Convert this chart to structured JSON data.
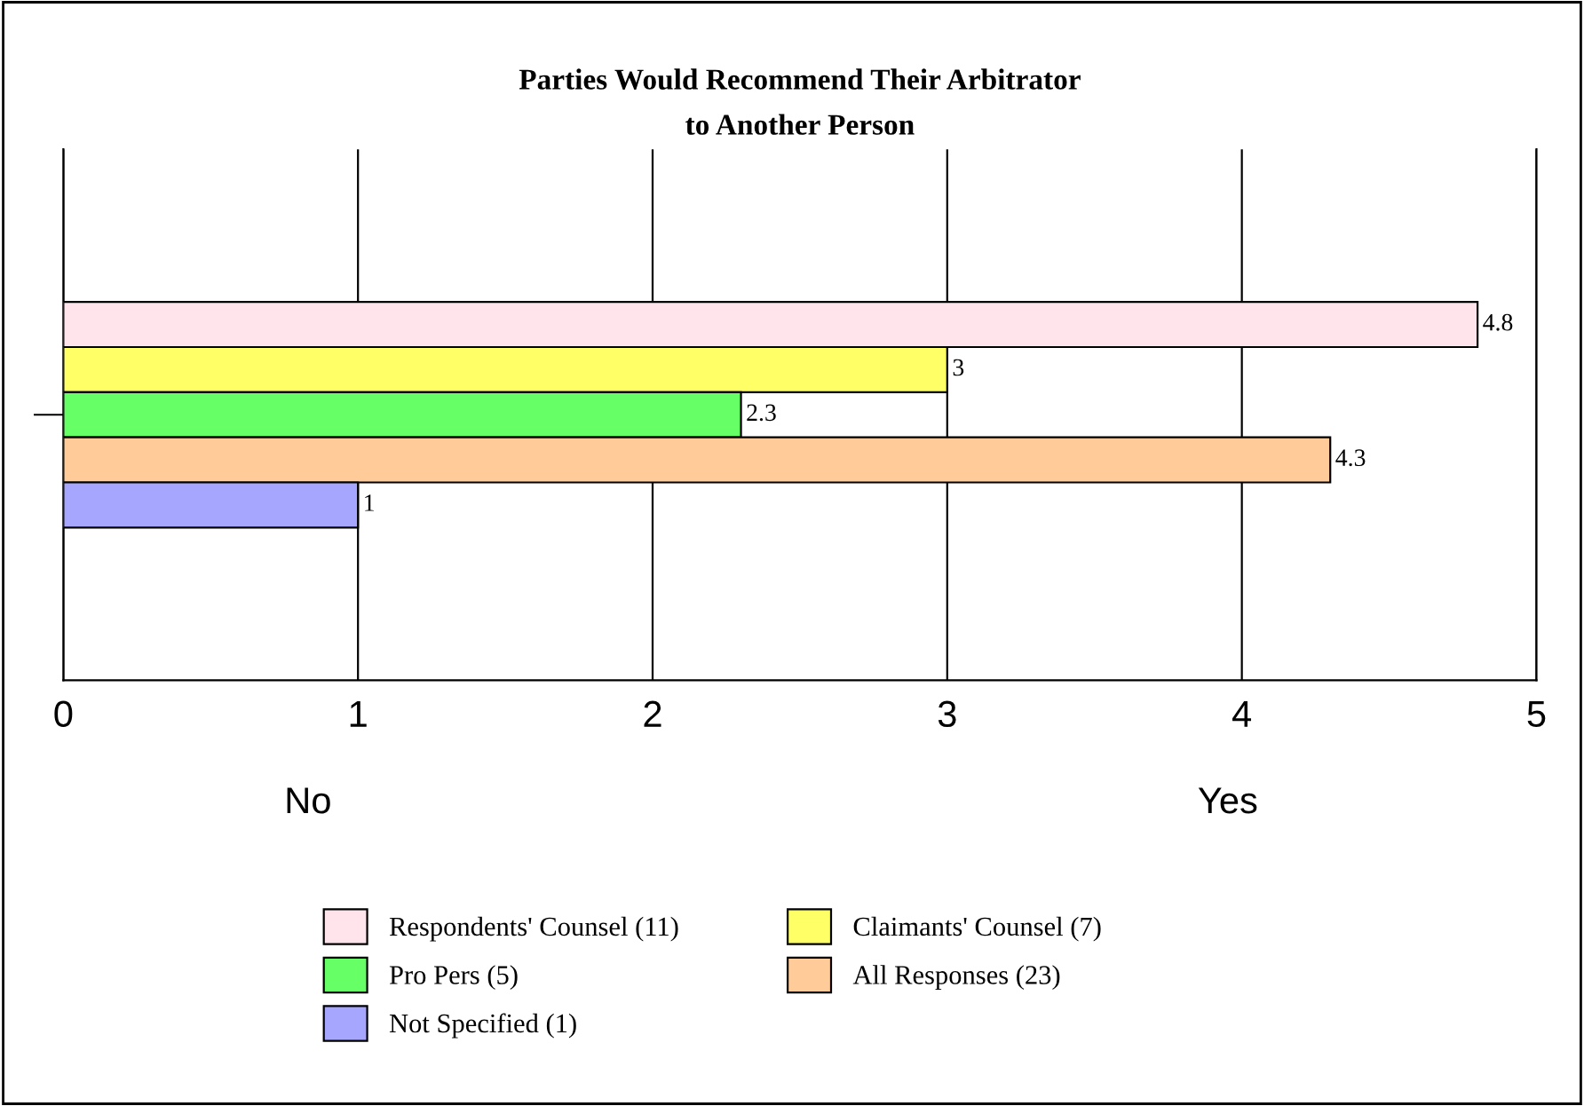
{
  "chart_data": {
    "type": "bar",
    "orientation": "horizontal",
    "title": "Parties Would Recommend Their Arbitrator\nto Another Person",
    "categories": [
      null
    ],
    "series": [
      {
        "name": "Respondents' Counsel (11)",
        "color": "#ffe4ec",
        "values": [
          4.8
        ]
      },
      {
        "name": "Claimants' Counsel (7)",
        "color": "#ffff66",
        "values": [
          3
        ]
      },
      {
        "name": "Pro Pers (5)",
        "color": "#66ff66",
        "values": [
          2.3
        ]
      },
      {
        "name": "All Responses (23)",
        "color": "#ffcc99",
        "values": [
          4.3
        ]
      },
      {
        "name": "Not Specified (1)",
        "color": "#a6a6ff",
        "values": [
          1
        ]
      }
    ],
    "xlim": [
      0,
      5
    ],
    "xticks": [
      0,
      1,
      2,
      3,
      4,
      5
    ],
    "grid": "x",
    "legend": "bottom",
    "data_labels": true,
    "annotations": [
      "No",
      "Yes"
    ]
  }
}
